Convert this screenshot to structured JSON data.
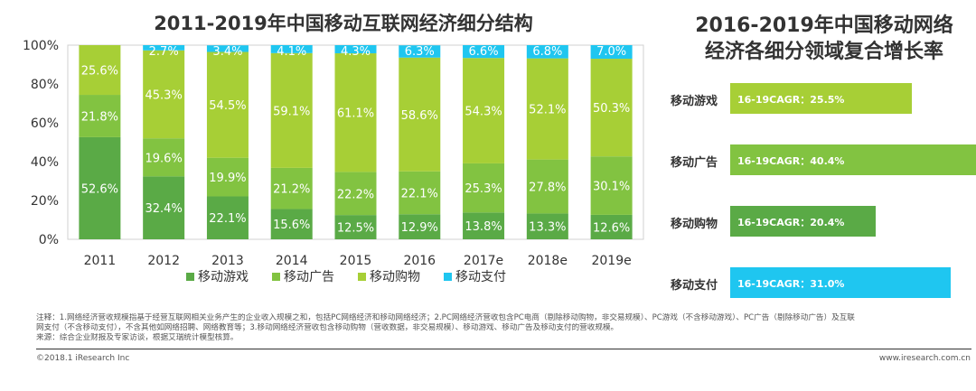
{
  "chart_data": [
    {
      "type": "bar",
      "stacked": true,
      "title": "2011-2019年中国移动互联网经济细分结构",
      "categories": [
        "2011",
        "2012",
        "2013",
        "2014",
        "2015",
        "2016",
        "2017e",
        "2018e",
        "2019e"
      ],
      "ylim": [
        0,
        100
      ],
      "yticks": [
        "0%",
        "20%",
        "40%",
        "60%",
        "80%",
        "100%"
      ],
      "series": [
        {
          "name": "移动游戏",
          "color": "#5aaa46",
          "values": [
            52.6,
            32.4,
            22.1,
            15.6,
            12.5,
            12.9,
            13.8,
            13.3,
            12.6
          ]
        },
        {
          "name": "移动广告",
          "color": "#82c341",
          "values": [
            21.8,
            19.6,
            19.9,
            21.2,
            22.2,
            22.1,
            25.3,
            27.8,
            30.1
          ]
        },
        {
          "name": "移动购物",
          "color": "#a7cf36",
          "values": [
            25.6,
            45.3,
            54.5,
            59.1,
            61.1,
            58.6,
            54.3,
            52.1,
            50.3
          ]
        },
        {
          "name": "移动支付",
          "color": "#1fc6f0",
          "values": [
            0,
            2.7,
            3.4,
            4.1,
            4.3,
            6.3,
            6.6,
            6.8,
            7.0
          ]
        }
      ],
      "labels": [
        [
          "52.6%",
          "21.8%",
          "25.6%",
          ""
        ],
        [
          "32.4%",
          "19.6%",
          "45.3%",
          "2.7%"
        ],
        [
          "22.1%",
          "19.9%",
          "54.5%",
          "3.4%"
        ],
        [
          "15.6%",
          "21.2%",
          "59.1%",
          "4.1%"
        ],
        [
          "12.5%",
          "22.2%",
          "61.1%",
          "4.3%"
        ],
        [
          "12.9%",
          "22.1%",
          "58.6%",
          "6.3%"
        ],
        [
          "13.8%",
          "25.3%",
          "54.3%",
          "6.6%"
        ],
        [
          "13.3%",
          "27.8%",
          "52.1%",
          "6.8%"
        ],
        [
          "12.6%",
          "30.1%",
          "50.3%",
          "7.0%"
        ]
      ],
      "legend_position": "bottom"
    },
    {
      "type": "bar",
      "orientation": "horizontal",
      "title": "2016-2019年中国移动网络经济各细分领域复合增长率",
      "categories": [
        "移动游戏",
        "移动广告",
        "移动购物",
        "移动支付"
      ],
      "values": [
        25.5,
        40.4,
        20.4,
        31.0
      ],
      "labels": [
        "16-19CAGR：25.5%",
        "16-19CAGR：40.4%",
        "16-19CAGR：20.4%",
        "16-19CAGR：31.0%"
      ],
      "colors": [
        "#a7cf36",
        "#82c341",
        "#5aaa46",
        "#1fc6f0"
      ],
      "xlim": [
        0,
        40.4
      ]
    }
  ],
  "right_title_line1": "2016-2019年中国移动网络",
  "right_title_line2": "经济各细分领域复合增长率",
  "notes": [
    "注释：1.网络经济营收规模指基于经营互联网相关业务产生的企业收入规模之和，包括PC网络经济和移动网络经济；2.PC网络经济营收包含PC电商（剔除移动购物，非交易规模）、PC游戏（不含移动游戏）、PC广告（剔除移动广告）及互联",
    "网支付（不含移动支付），不含其他如网络招聘、网络教育等；3.移动网络经济营收包含移动购物（营收数据，非交易规模）、移动游戏、移动广告及移动支付的营收规模。",
    "来源：综合企业财报及专家访谈，根据艾瑞统计模型核算。"
  ],
  "copyright": "©2018.1 iResearch Inc",
  "website": "www.iresearch.com.cn"
}
